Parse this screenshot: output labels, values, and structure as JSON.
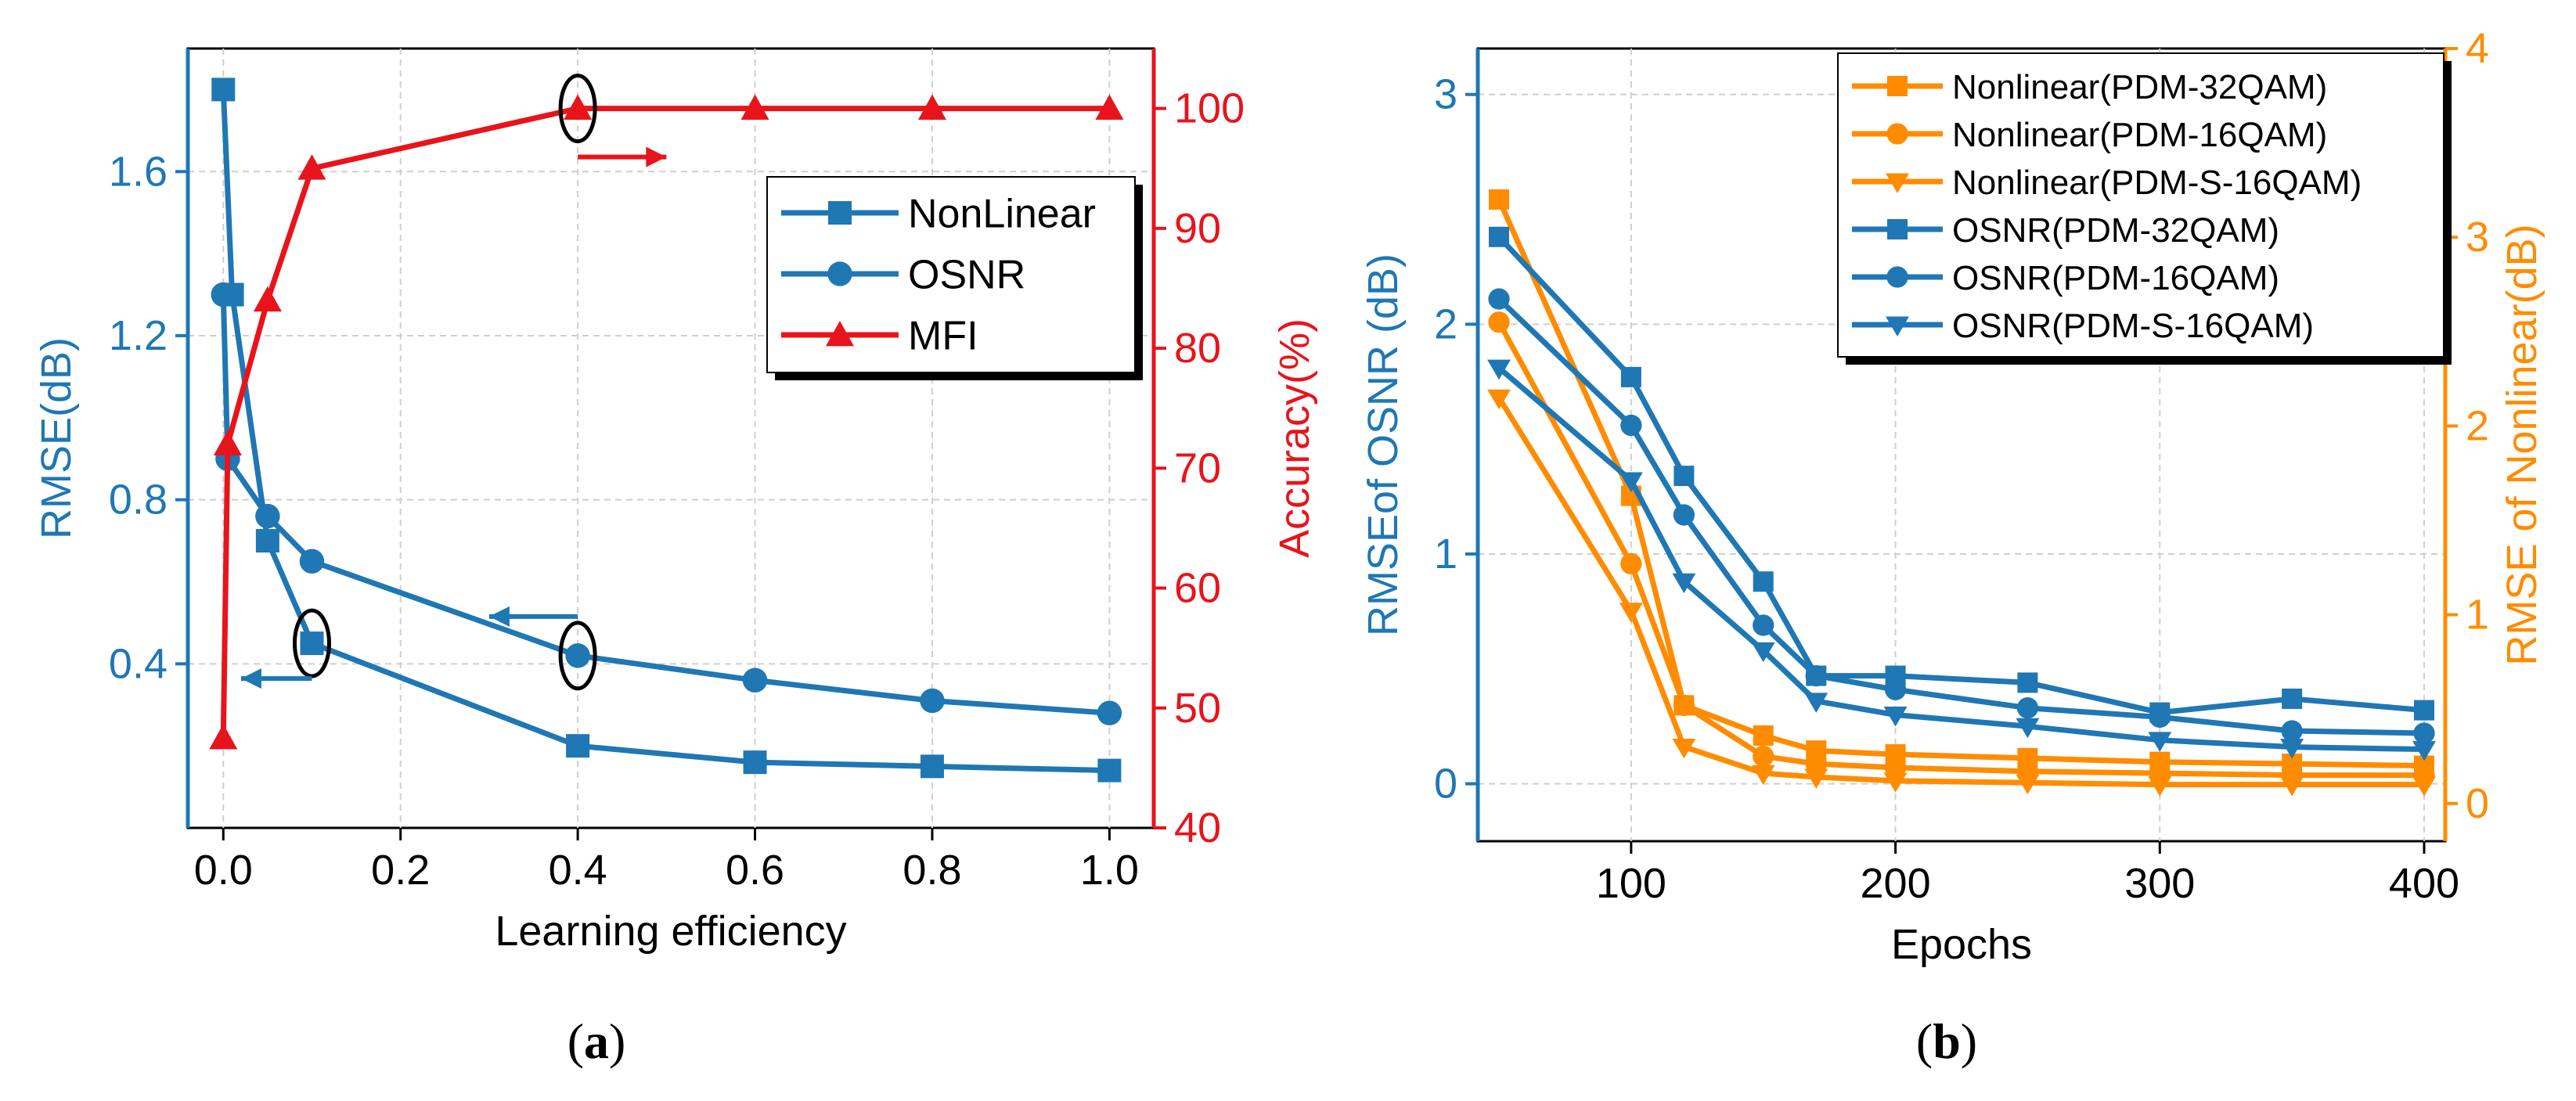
{
  "colors": {
    "blue": "#1F77B4",
    "red": "#E8141B",
    "orange": "#FF8C00",
    "axis": "#000000",
    "grid": "#CFCFCF"
  },
  "chart_data": [
    {
      "type": "line",
      "panel_label": "(a)",
      "caption_letter": "a",
      "xlabel": "Learning efficiency",
      "ylabel_left": "RMSE(dB)",
      "ylabel_right": "Accuracy(%)",
      "xlim": [
        -0.04,
        1.05
      ],
      "ylim_left": [
        0.0,
        1.9
      ],
      "ylim_right": [
        40,
        105
      ],
      "xticks": [
        0.0,
        0.2,
        0.4,
        0.6,
        0.8,
        1.0
      ],
      "xtick_labels": [
        "0.0",
        "0.2",
        "0.4",
        "0.6",
        "0.8",
        "1.0"
      ],
      "yticks_left": [
        0.4,
        0.8,
        1.2,
        1.6
      ],
      "ytick_labels_left": [
        "0.4",
        "0.8",
        "1.2",
        "1.6"
      ],
      "yticks_right": [
        40,
        50,
        60,
        70,
        80,
        90,
        100
      ],
      "ytick_labels_right": [
        "40",
        "50",
        "60",
        "70",
        "80",
        "90",
        "100"
      ],
      "legend_position": "top-right",
      "series": [
        {
          "name": "NonLinear",
          "axis": "left",
          "color": "blue",
          "marker": "square",
          "x": [
            0.0,
            0.01,
            0.05,
            0.1,
            0.4,
            0.6,
            0.8,
            1.0
          ],
          "y": [
            1.8,
            1.3,
            0.7,
            0.45,
            0.2,
            0.16,
            0.15,
            0.14
          ]
        },
        {
          "name": "OSNR",
          "axis": "left",
          "color": "blue",
          "marker": "circle",
          "x": [
            0.0,
            0.005,
            0.05,
            0.1,
            0.4,
            0.6,
            0.8,
            1.0
          ],
          "y": [
            1.3,
            0.9,
            0.76,
            0.65,
            0.42,
            0.36,
            0.31,
            0.28
          ]
        },
        {
          "name": "MFI",
          "axis": "right",
          "color": "red",
          "marker": "triangle-up",
          "x": [
            0.0,
            0.005,
            0.05,
            0.1,
            0.4,
            0.6,
            0.8,
            1.0
          ],
          "y": [
            47.5,
            72,
            84,
            95,
            100,
            100,
            100,
            100
          ]
        }
      ],
      "annotations": [
        {
          "note": "ellipse_arrow_right",
          "axis": "right",
          "x": 0.4,
          "y": 100,
          "arrow_to_x": 0.5
        },
        {
          "note": "ellipse_arrow_left",
          "axis": "left",
          "x": 0.4,
          "y": 0.42,
          "arrow_to_x": 0.3
        },
        {
          "note": "ellipse_arrow_left",
          "axis": "left",
          "x": 0.1,
          "y": 0.45,
          "arrow_to_x": 0.02
        }
      ]
    },
    {
      "type": "line",
      "panel_label": "(b)",
      "caption_letter": "b",
      "xlabel": "Epochs",
      "ylabel_left": "RMSEof OSNR (dB)",
      "ylabel_right": "RMSE of Nonlinear(dB)",
      "xlim": [
        42,
        408
      ],
      "ylim_left": [
        -0.25,
        3.2
      ],
      "ylim_right": [
        -0.2,
        4.0
      ],
      "xticks": [
        100,
        200,
        300,
        400
      ],
      "xtick_labels": [
        "100",
        "200",
        "300",
        "400"
      ],
      "yticks_left": [
        0,
        1,
        2,
        3
      ],
      "ytick_labels_left": [
        "0",
        "1",
        "2",
        "3"
      ],
      "yticks_right": [
        0,
        1,
        2,
        3,
        4
      ],
      "ytick_labels_right": [
        "0",
        "1",
        "2",
        "3",
        "4"
      ],
      "legend_position": "top-right",
      "series": [
        {
          "name": "Nonlinear(PDM-32QAM)",
          "axis": "right",
          "color": "orange",
          "marker": "square",
          "x": [
            50,
            100,
            120,
            150,
            170,
            200,
            250,
            300,
            350,
            400
          ],
          "y": [
            3.2,
            1.63,
            0.52,
            0.36,
            0.28,
            0.26,
            0.24,
            0.22,
            0.21,
            0.2
          ]
        },
        {
          "name": "Nonlinear(PDM-16QAM)",
          "axis": "right",
          "color": "orange",
          "marker": "circle",
          "x": [
            50,
            100,
            120,
            150,
            170,
            200,
            250,
            300,
            350,
            400
          ],
          "y": [
            2.55,
            1.27,
            0.52,
            0.25,
            0.21,
            0.19,
            0.17,
            0.16,
            0.15,
            0.15
          ]
        },
        {
          "name": "Nonlinear(PDM-S-16QAM)",
          "axis": "right",
          "color": "orange",
          "marker": "triangle-down",
          "x": [
            50,
            100,
            120,
            150,
            170,
            200,
            250,
            300,
            350,
            400
          ],
          "y": [
            2.15,
            1.02,
            0.3,
            0.16,
            0.14,
            0.12,
            0.11,
            0.1,
            0.1,
            0.1
          ]
        },
        {
          "name": "OSNR(PDM-32QAM)",
          "axis": "left",
          "color": "blue",
          "marker": "square",
          "x": [
            50,
            100,
            120,
            150,
            170,
            200,
            250,
            300,
            350,
            400
          ],
          "y": [
            2.38,
            1.77,
            1.34,
            0.88,
            0.47,
            0.47,
            0.44,
            0.31,
            0.37,
            0.32
          ]
        },
        {
          "name": "OSNR(PDM-16QAM)",
          "axis": "left",
          "color": "blue",
          "marker": "circle",
          "x": [
            50,
            100,
            120,
            150,
            170,
            200,
            250,
            300,
            350,
            400
          ],
          "y": [
            2.11,
            1.56,
            1.17,
            0.69,
            0.47,
            0.41,
            0.33,
            0.29,
            0.23,
            0.22
          ]
        },
        {
          "name": "OSNR(PDM-S-16QAM)",
          "axis": "left",
          "color": "blue",
          "marker": "triangle-down",
          "x": [
            50,
            100,
            120,
            150,
            170,
            200,
            250,
            300,
            350,
            400
          ],
          "y": [
            1.81,
            1.32,
            0.88,
            0.58,
            0.36,
            0.3,
            0.25,
            0.19,
            0.16,
            0.15
          ]
        }
      ]
    }
  ]
}
